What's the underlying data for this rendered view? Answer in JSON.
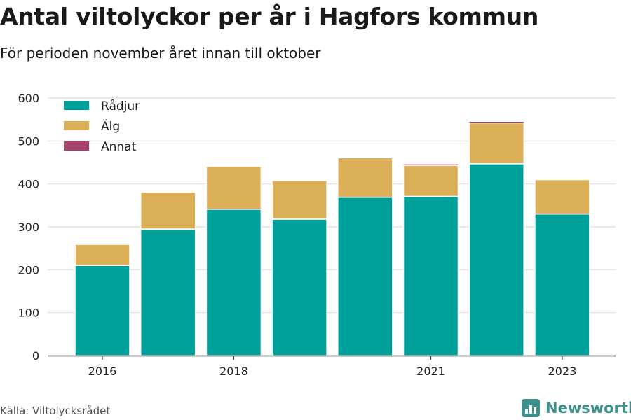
{
  "header": {
    "title": "Antal viltolyckor per år i Hagfors kommun",
    "subtitle": "För perioden november året innan till oktober"
  },
  "footer": {
    "source": "Källa: Viltolycksrådet",
    "brand": "Newsworthy",
    "brand_color": "#3d8f8b",
    "brand_icon": "bar-chart-logo-icon"
  },
  "chart_data": {
    "type": "bar",
    "stacked": true,
    "categories": [
      "2016",
      "2017",
      "2018",
      "2019",
      "2020",
      "2021",
      "2022",
      "2023"
    ],
    "x_tick_labels": [
      "2016",
      "2018",
      "2021",
      "2023"
    ],
    "series": [
      {
        "name": "Rådjur",
        "color": "#00a09a",
        "values": [
          210,
          295,
          341,
          318,
          369,
          371,
          447,
          330
        ]
      },
      {
        "name": "Älg",
        "color": "#dbae58",
        "values": [
          49,
          86,
          100,
          90,
          92,
          72,
          95,
          80
        ]
      },
      {
        "name": "Annat",
        "color": "#a8416d",
        "values": [
          0,
          0,
          0,
          0,
          0,
          3,
          3,
          0
        ]
      }
    ],
    "y_ticks": [
      0,
      100,
      200,
      300,
      400,
      500,
      600
    ],
    "ylim": [
      0,
      600
    ],
    "xlabel": "",
    "ylabel": "",
    "grid": true,
    "legend_position": "top-left"
  }
}
